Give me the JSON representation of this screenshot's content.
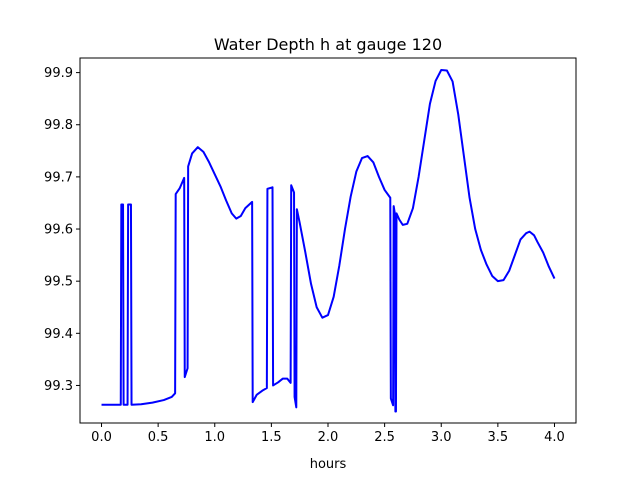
{
  "chart_data": {
    "type": "line",
    "title": "Water Depth h at gauge 120",
    "xlabel": "hours",
    "ylabel": "",
    "xlim": [
      -0.19,
      4.19
    ],
    "ylim": [
      99.228,
      99.928
    ],
    "xticks": [
      0.0,
      0.5,
      1.0,
      1.5,
      2.0,
      2.5,
      3.0,
      3.5,
      4.0
    ],
    "xtick_labels": [
      "0.0",
      "0.5",
      "1.0",
      "1.5",
      "2.0",
      "2.5",
      "3.0",
      "3.5",
      "4.0"
    ],
    "yticks": [
      99.3,
      99.4,
      99.5,
      99.6,
      99.7,
      99.8,
      99.9
    ],
    "ytick_labels": [
      "99.3",
      "99.4",
      "99.5",
      "99.6",
      "99.7",
      "99.8",
      "99.9"
    ],
    "grid": false,
    "legend": "none",
    "series": [
      {
        "color": "#0000ff",
        "points": [
          [
            0.0,
            99.263
          ],
          [
            0.17,
            99.263
          ],
          [
            0.175,
            99.647
          ],
          [
            0.19,
            99.647
          ],
          [
            0.195,
            99.263
          ],
          [
            0.23,
            99.263
          ],
          [
            0.235,
            99.647
          ],
          [
            0.26,
            99.647
          ],
          [
            0.265,
            99.263
          ],
          [
            0.35,
            99.264
          ],
          [
            0.45,
            99.267
          ],
          [
            0.55,
            99.272
          ],
          [
            0.62,
            99.278
          ],
          [
            0.65,
            99.285
          ],
          [
            0.655,
            99.667
          ],
          [
            0.69,
            99.678
          ],
          [
            0.73,
            99.698
          ],
          [
            0.735,
            99.316
          ],
          [
            0.76,
            99.333
          ],
          [
            0.765,
            99.72
          ],
          [
            0.8,
            99.745
          ],
          [
            0.85,
            99.757
          ],
          [
            0.9,
            99.748
          ],
          [
            0.95,
            99.728
          ],
          [
            1.0,
            99.705
          ],
          [
            1.05,
            99.682
          ],
          [
            1.1,
            99.655
          ],
          [
            1.15,
            99.63
          ],
          [
            1.19,
            99.62
          ],
          [
            1.23,
            99.625
          ],
          [
            1.27,
            99.64
          ],
          [
            1.33,
            99.652
          ],
          [
            1.335,
            99.268
          ],
          [
            1.37,
            99.282
          ],
          [
            1.42,
            99.29
          ],
          [
            1.46,
            99.295
          ],
          [
            1.465,
            99.677
          ],
          [
            1.51,
            99.68
          ],
          [
            1.515,
            99.3
          ],
          [
            1.56,
            99.306
          ],
          [
            1.6,
            99.313
          ],
          [
            1.64,
            99.313
          ],
          [
            1.67,
            99.305
          ],
          [
            1.675,
            99.684
          ],
          [
            1.7,
            99.67
          ],
          [
            1.705,
            99.278
          ],
          [
            1.72,
            99.258
          ],
          [
            1.725,
            99.638
          ],
          [
            1.75,
            99.612
          ],
          [
            1.8,
            99.555
          ],
          [
            1.85,
            99.495
          ],
          [
            1.9,
            99.45
          ],
          [
            1.95,
            99.43
          ],
          [
            2.0,
            99.435
          ],
          [
            2.05,
            99.47
          ],
          [
            2.1,
            99.53
          ],
          [
            2.15,
            99.6
          ],
          [
            2.2,
            99.662
          ],
          [
            2.25,
            99.71
          ],
          [
            2.3,
            99.736
          ],
          [
            2.35,
            99.74
          ],
          [
            2.4,
            99.728
          ],
          [
            2.45,
            99.7
          ],
          [
            2.5,
            99.675
          ],
          [
            2.55,
            99.66
          ],
          [
            2.555,
            99.275
          ],
          [
            2.575,
            99.262
          ],
          [
            2.58,
            99.644
          ],
          [
            2.59,
            99.63
          ],
          [
            2.595,
            99.25
          ],
          [
            2.6,
            99.25
          ],
          [
            2.605,
            99.63
          ],
          [
            2.63,
            99.618
          ],
          [
            2.66,
            99.608
          ],
          [
            2.7,
            99.61
          ],
          [
            2.75,
            99.64
          ],
          [
            2.8,
            99.7
          ],
          [
            2.85,
            99.77
          ],
          [
            2.9,
            99.84
          ],
          [
            2.95,
            99.884
          ],
          [
            3.0,
            99.905
          ],
          [
            3.05,
            99.904
          ],
          [
            3.1,
            99.883
          ],
          [
            3.15,
            99.82
          ],
          [
            3.2,
            99.74
          ],
          [
            3.25,
            99.66
          ],
          [
            3.3,
            99.6
          ],
          [
            3.35,
            99.56
          ],
          [
            3.4,
            99.532
          ],
          [
            3.45,
            99.51
          ],
          [
            3.5,
            99.5
          ],
          [
            3.55,
            99.502
          ],
          [
            3.6,
            99.52
          ],
          [
            3.65,
            99.55
          ],
          [
            3.7,
            99.58
          ],
          [
            3.75,
            99.592
          ],
          [
            3.78,
            99.595
          ],
          [
            3.82,
            99.588
          ],
          [
            3.85,
            99.575
          ],
          [
            3.9,
            99.555
          ],
          [
            3.95,
            99.528
          ],
          [
            4.0,
            99.505
          ]
        ]
      }
    ]
  }
}
